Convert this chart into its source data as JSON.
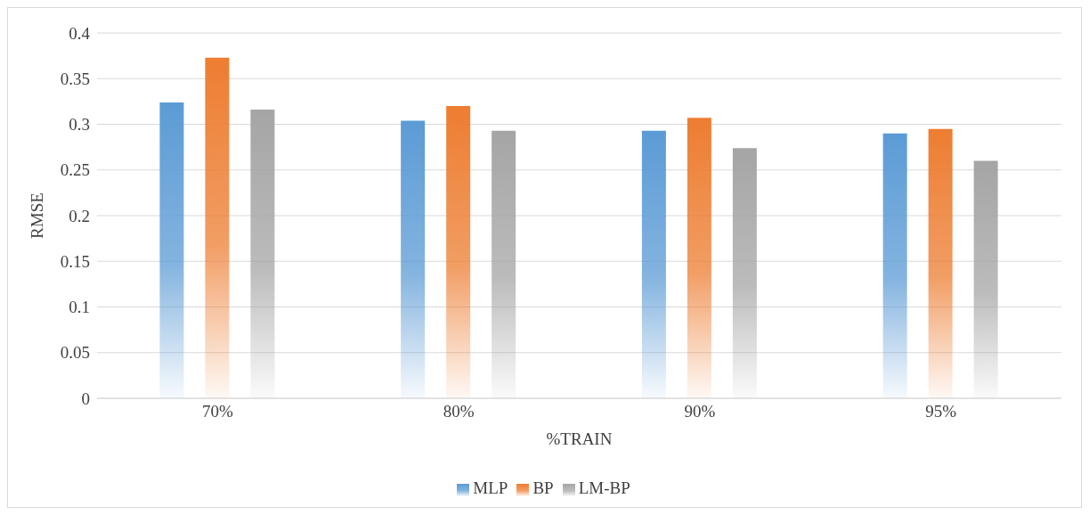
{
  "chart_data": {
    "type": "bar",
    "xlabel": "%TRAIN",
    "ylabel": "RMSE",
    "categories": [
      "70%",
      "80%",
      "90%",
      "95%"
    ],
    "series": [
      {
        "name": "MLP",
        "color": "#5b9bd5",
        "values": [
          0.324,
          0.304,
          0.293,
          0.29
        ]
      },
      {
        "name": "BP",
        "color": "#ed7d31",
        "values": [
          0.373,
          0.32,
          0.307,
          0.295
        ]
      },
      {
        "name": "LM-BP",
        "color": "#a5a5a5",
        "values": [
          0.316,
          0.293,
          0.274,
          0.26
        ]
      }
    ],
    "ylim": [
      0,
      0.4
    ],
    "yticks": [
      0,
      0.05,
      0.1,
      0.15,
      0.2,
      0.25,
      0.3,
      0.35,
      0.4
    ],
    "grid": "y",
    "legend": "bottom"
  }
}
